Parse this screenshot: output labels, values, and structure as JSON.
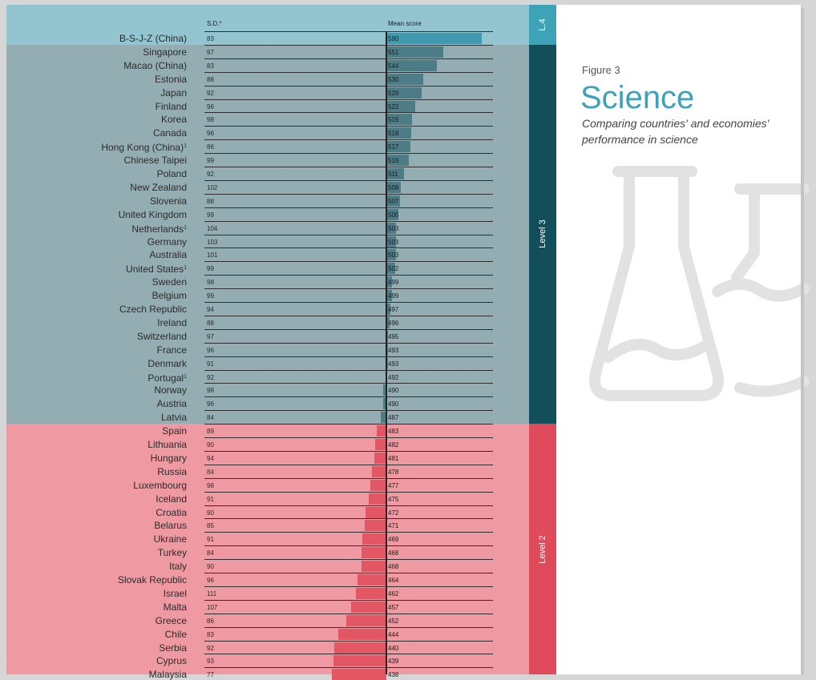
{
  "figure": {
    "label": "Figure 3",
    "title": "Science",
    "subtitle": "Comparing countries' and economies' performance in science",
    "icon": "flask-icon"
  },
  "columns": {
    "sd": "S.D.*",
    "mean": "Mean score"
  },
  "levels": [
    {
      "label": "L.4",
      "from": 0,
      "to": 0,
      "band_color": "#93c5d1",
      "side_color": "#3fa3b7",
      "bar_color": "#3f9ab0"
    },
    {
      "label": "Level 3",
      "from": 1,
      "to": 28,
      "band_color": "#94adb2",
      "side_color": "#124e5b",
      "bar_color": "#4c7c86"
    },
    {
      "label": "Level 2",
      "from": 29,
      "to": 47,
      "band_color": "#ef9aa3",
      "side_color": "#e04b5c",
      "bar_color": "#e35765"
    }
  ],
  "chart_data": {
    "type": "bar",
    "title": "Science",
    "baseline": 493,
    "xlim": [
      420,
      600
    ],
    "categories": [
      "B-S-J-Z (China)",
      "Singapore",
      "Macao (China)",
      "Estonia",
      "Japan",
      "Finland",
      "Korea",
      "Canada",
      "Hong Kong (China)",
      "Chinese Taipei",
      "Poland",
      "New Zealand",
      "Slovenia",
      "United Kingdom",
      "Netherlands",
      "Germany",
      "Australia",
      "United States",
      "Sweden",
      "Belgium",
      "Czech Republic",
      "Ireland",
      "Switzerland",
      "France",
      "Denmark",
      "Portugal",
      "Norway",
      "Austria",
      "Latvia",
      "Spain",
      "Lithuania",
      "Hungary",
      "Russia",
      "Luxembourg",
      "Iceland",
      "Croatia",
      "Belarus",
      "Ukraine",
      "Turkey",
      "Italy",
      "Slovak Republic",
      "Israel",
      "Malta",
      "Greece",
      "Chile",
      "Serbia",
      "Cyprus",
      "Malaysia"
    ],
    "footnote_marks": [
      "",
      "",
      "",
      "",
      "",
      "",
      "",
      "",
      "1",
      "",
      "",
      "",
      "",
      "",
      "1",
      "",
      "",
      "1",
      "",
      "",
      "",
      "",
      "",
      "",
      "",
      "1",
      "",
      "",
      "",
      "",
      "",
      "",
      "",
      "",
      "",
      "",
      "",
      "",
      "",
      "",
      "",
      "",
      "",
      "",
      "",
      "",
      "",
      ""
    ],
    "series": [
      {
        "name": "Mean score",
        "values": [
          590,
          551,
          544,
          530,
          529,
          522,
          519,
          518,
          517,
          516,
          511,
          508,
          507,
          505,
          503,
          503,
          503,
          502,
          499,
          499,
          497,
          496,
          495,
          493,
          493,
          492,
          490,
          490,
          487,
          483,
          482,
          481,
          478,
          477,
          475,
          472,
          471,
          469,
          468,
          468,
          464,
          462,
          457,
          452,
          444,
          440,
          439,
          438
        ]
      },
      {
        "name": "S.D.*",
        "values": [
          83,
          97,
          83,
          88,
          92,
          96,
          98,
          96,
          86,
          99,
          92,
          102,
          88,
          99,
          104,
          103,
          101,
          99,
          98,
          99,
          94,
          88,
          97,
          96,
          91,
          92,
          98,
          96,
          84,
          89,
          90,
          94,
          84,
          98,
          91,
          90,
          85,
          91,
          84,
          90,
          96,
          111,
          107,
          86,
          83,
          92,
          93,
          77
        ]
      }
    ]
  }
}
